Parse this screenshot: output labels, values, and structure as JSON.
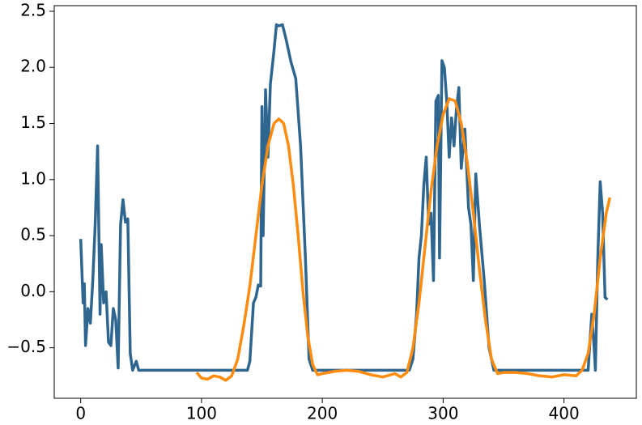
{
  "chart_data": {
    "type": "line",
    "xlim": [
      -21.9,
      459.9
    ],
    "xticks": [
      0,
      100,
      200,
      300,
      400
    ],
    "ylim": [
      -0.95,
      2.55
    ],
    "yticks": [
      {
        "value": -0.5,
        "label": "−0.5"
      },
      {
        "value": 0,
        "label": "0.0"
      },
      {
        "value": 0.5,
        "label": "0.5"
      },
      {
        "value": 1,
        "label": "1.0"
      },
      {
        "value": 1.5,
        "label": "1.5"
      },
      {
        "value": 2,
        "label": "2.0"
      },
      {
        "value": 2.5,
        "label": "2.5"
      }
    ],
    "grid": false,
    "series": [
      {
        "color": "#2f6690",
        "x": [
          0,
          2,
          3,
          4,
          6,
          8,
          10,
          12,
          14,
          16,
          17,
          19,
          21,
          23,
          25,
          27,
          29,
          31,
          33,
          35,
          37,
          39,
          41,
          43,
          46,
          48,
          138,
          140,
          143,
          145,
          147,
          149,
          150,
          151,
          153,
          155,
          157,
          160,
          162,
          164,
          167,
          170,
          174,
          178,
          182,
          186,
          189,
          192,
          272,
          275,
          278,
          280,
          282,
          284,
          286,
          288,
          290,
          292,
          294,
          296,
          297,
          299,
          301,
          303,
          305,
          307,
          309,
          311,
          313,
          315,
          318,
          321,
          323,
          325,
          327,
          330,
          334,
          338,
          342,
          420,
          423,
          425,
          426,
          428,
          430,
          432,
          434,
          436
        ],
        "values": [
          0.47,
          -0.1,
          0.07,
          -0.48,
          -0.15,
          -0.28,
          0.1,
          0.6,
          1.3,
          -0.2,
          0.42,
          -0.1,
          0.0,
          -0.45,
          -0.48,
          -0.15,
          -0.25,
          -0.68,
          0.6,
          0.82,
          0.62,
          0.65,
          -0.55,
          -0.7,
          -0.62,
          -0.7,
          -0.7,
          -0.62,
          -0.1,
          -0.05,
          0.06,
          0.05,
          1.65,
          0.5,
          1.8,
          1.2,
          1.85,
          2.15,
          2.38,
          2.37,
          2.38,
          2.25,
          2.05,
          1.9,
          1.3,
          0.3,
          -0.6,
          -0.7,
          -0.7,
          -0.6,
          -0.2,
          0.3,
          0.5,
          0.95,
          1.2,
          0.6,
          0.7,
          0.1,
          1.7,
          1.75,
          0.3,
          2.06,
          2.0,
          1.7,
          1.2,
          1.55,
          1.3,
          1.63,
          1.82,
          1.1,
          1.45,
          0.75,
          0.6,
          0.1,
          1.05,
          0.6,
          0.1,
          -0.5,
          -0.7,
          -0.7,
          -0.2,
          -0.5,
          -0.7,
          0.3,
          0.98,
          0.7,
          -0.05,
          -0.07
        ]
      },
      {
        "color": "#ff8c0f",
        "x": [
          96,
          100,
          105,
          110,
          115,
          120,
          125,
          130,
          135,
          140,
          145,
          150,
          155,
          160,
          164,
          168,
          172,
          176,
          180,
          184,
          188,
          192,
          196,
          200,
          210,
          220,
          230,
          240,
          250,
          260,
          265,
          270,
          275,
          280,
          285,
          290,
          295,
          300,
          305,
          310,
          315,
          320,
          325,
          330,
          335,
          340,
          345,
          350,
          360,
          370,
          380,
          390,
          400,
          410,
          415,
          420,
          425,
          430,
          435,
          438
        ],
        "values": [
          -0.72,
          -0.77,
          -0.78,
          -0.75,
          -0.76,
          -0.79,
          -0.75,
          -0.6,
          -0.3,
          0.05,
          0.5,
          0.95,
          1.3,
          1.5,
          1.54,
          1.5,
          1.3,
          0.95,
          0.5,
          0.0,
          -0.4,
          -0.65,
          -0.74,
          -0.73,
          -0.71,
          -0.7,
          -0.71,
          -0.74,
          -0.76,
          -0.73,
          -0.76,
          -0.72,
          -0.5,
          -0.1,
          0.4,
          0.9,
          1.3,
          1.58,
          1.72,
          1.7,
          1.5,
          1.15,
          0.7,
          0.2,
          -0.25,
          -0.6,
          -0.73,
          -0.72,
          -0.72,
          -0.73,
          -0.75,
          -0.76,
          -0.74,
          -0.75,
          -0.7,
          -0.55,
          -0.2,
          0.3,
          0.7,
          0.84
        ]
      }
    ]
  }
}
